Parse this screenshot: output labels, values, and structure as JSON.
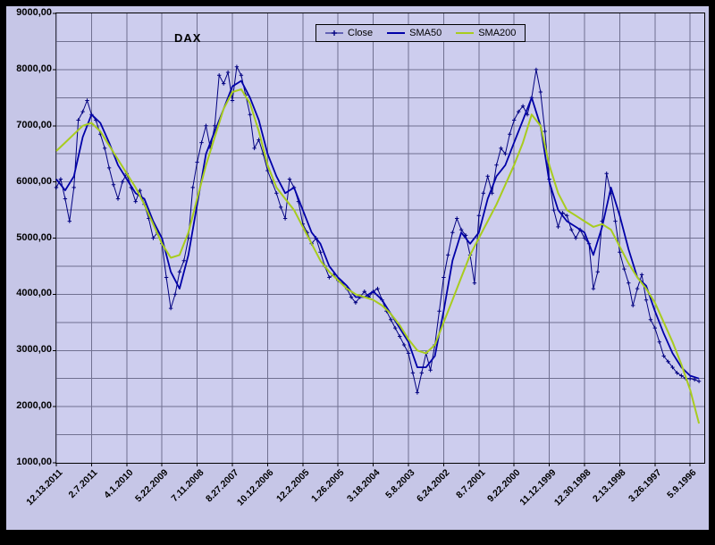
{
  "chart_data": {
    "type": "line",
    "title": "DAX",
    "x_axis": {
      "note": "category time axis, reversed (newest date on the left)",
      "tick_labels": [
        "12.13.2011",
        "2.7.2011",
        "4.1.2010",
        "5.22.2009",
        "7.11.2008",
        "8.27.2007",
        "10.12.2006",
        "12.2.2005",
        "1.26.2005",
        "3.18.2004",
        "5.8.2003",
        "6.24.2002",
        "8.7.2001",
        "9.22.2000",
        "11.12.1999",
        "12.30.1998",
        "2.13.1998",
        "3.26.1997",
        "5.9.1996"
      ],
      "t_max": 18.4
    },
    "y_axis": {
      "min": 1000,
      "max": 9000,
      "grid_step": 500,
      "label_step": 1000,
      "tick_labels": [
        "9000,00",
        "8000,00",
        "7000,00",
        "6000,00",
        "5000,00",
        "4000,00",
        "3000,00",
        "2000,00",
        "1000,00"
      ]
    },
    "legend_position": "top-center",
    "grid": true,
    "colors": {
      "frame_background": "#c6c6e7",
      "plot_background": "#cdcdee",
      "gridline": "#707090",
      "close": "#000080",
      "sma50": "#0000a8",
      "sma200": "#a8cc1e"
    },
    "series": [
      {
        "name": "Close",
        "color": "#000080",
        "line_width": 1,
        "marker": "plus",
        "x_step": 0.125,
        "values": [
          5900,
          6050,
          5700,
          5300,
          5900,
          7100,
          7250,
          7450,
          7200,
          7100,
          6850,
          6600,
          6250,
          5950,
          5700,
          6000,
          6150,
          5900,
          5650,
          5850,
          5600,
          5350,
          5000,
          5100,
          4900,
          4300,
          3750,
          4000,
          4400,
          4600,
          5000,
          5900,
          6350,
          6700,
          7000,
          6600,
          7000,
          7900,
          7750,
          7950,
          7450,
          8050,
          7900,
          7550,
          7200,
          6600,
          6750,
          6500,
          6200,
          6000,
          5800,
          5550,
          5350,
          6050,
          5900,
          5650,
          5250,
          5100,
          4900,
          5000,
          4750,
          4500,
          4300,
          4350,
          4250,
          4200,
          4100,
          3950,
          3850,
          3950,
          4050,
          3950,
          4050,
          4100,
          3900,
          3700,
          3550,
          3400,
          3250,
          3100,
          2950,
          2600,
          2250,
          2600,
          2950,
          2650,
          3100,
          3700,
          4300,
          4700,
          5100,
          5350,
          5150,
          5050,
          4700,
          4200,
          5400,
          5800,
          6100,
          5800,
          6300,
          6600,
          6500,
          6850,
          7100,
          7250,
          7350,
          7200,
          7500,
          8000,
          7600,
          6900,
          6050,
          5500,
          5200,
          5450,
          5400,
          5150,
          5000,
          5150,
          5000,
          4900,
          4100,
          4400,
          5300,
          6150,
          5800,
          5300,
          4750,
          4450,
          4200,
          3800,
          4100,
          4350,
          3900,
          3550,
          3400,
          3150,
          2900,
          2800,
          2700,
          2600,
          2550,
          2500,
          2500,
          2480,
          2450
        ]
      },
      {
        "name": "SMA50",
        "color": "#0000a8",
        "line_width": 1.8,
        "marker": "none",
        "x_step": 0.25,
        "values": [
          6050,
          5850,
          6100,
          6800,
          7200,
          7050,
          6700,
          6300,
          6050,
          5800,
          5700,
          5300,
          5000,
          4400,
          4100,
          4700,
          5600,
          6500,
          6900,
          7300,
          7700,
          7800,
          7500,
          7100,
          6500,
          6100,
          5800,
          5900,
          5500,
          5100,
          4900,
          4500,
          4300,
          4150,
          3950,
          3950,
          4050,
          3900,
          3650,
          3400,
          3150,
          2700,
          2700,
          2900,
          3700,
          4600,
          5100,
          4900,
          5100,
          5700,
          6100,
          6300,
          6700,
          7100,
          7500,
          7000,
          6000,
          5500,
          5300,
          5200,
          5100,
          4700,
          5200,
          5900,
          5400,
          4800,
          4300,
          4150,
          3700,
          3300,
          2950,
          2700,
          2550,
          2500
        ]
      },
      {
        "name": "SMA200",
        "color": "#a8cc1e",
        "line_width": 2,
        "marker": "none",
        "x_step": 0.25,
        "values": [
          6550,
          6700,
          6850,
          7000,
          7050,
          6900,
          6650,
          6400,
          6150,
          5900,
          5600,
          5250,
          4900,
          4650,
          4700,
          5100,
          5700,
          6300,
          6800,
          7300,
          7600,
          7650,
          7400,
          6900,
          6300,
          5900,
          5700,
          5500,
          5200,
          4900,
          4600,
          4400,
          4250,
          4100,
          4000,
          3950,
          3900,
          3800,
          3650,
          3450,
          3200,
          3000,
          2950,
          3100,
          3500,
          3900,
          4300,
          4700,
          5000,
          5300,
          5600,
          5950,
          6300,
          6700,
          7200,
          7000,
          6300,
          5800,
          5500,
          5400,
          5300,
          5200,
          5250,
          5150,
          4850,
          4550,
          4300,
          4100,
          3850,
          3500,
          3150,
          2750,
          2300,
          1700
        ]
      }
    ]
  }
}
